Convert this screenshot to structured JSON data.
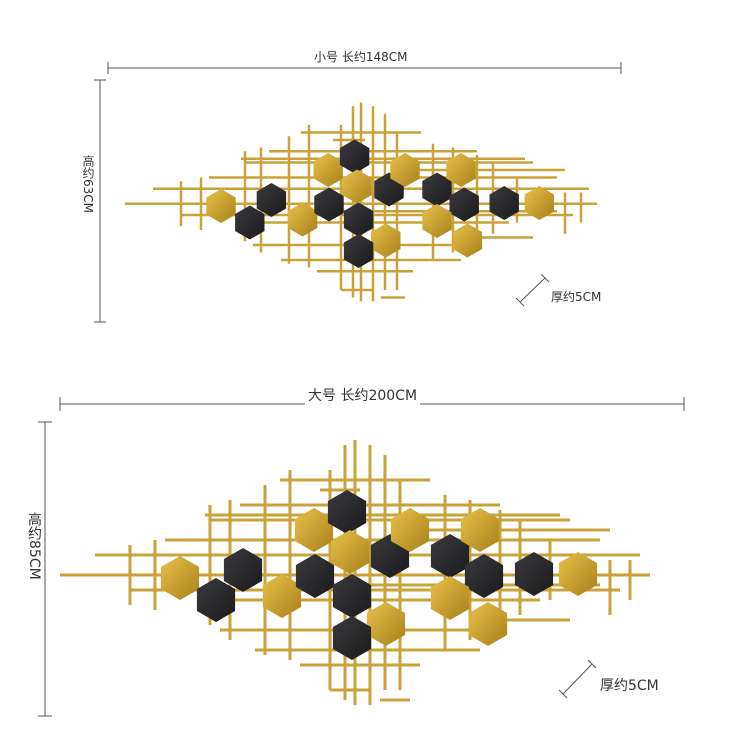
{
  "small": {
    "width_label": "小号 长约148CM",
    "height_label": "高约63CM",
    "depth_label": "厚约5CM"
  },
  "large": {
    "width_label": "大号 长约200CM",
    "height_label": "高约85CM",
    "depth_label": "厚约5CM"
  },
  "colors": {
    "gold": "#d4a62a",
    "gold_light": "#e8c14a",
    "gold_dark": "#a8801a",
    "black": "#1b1b1d",
    "black_hi": "#3a3a3e",
    "rod": "#c9a23a",
    "dimension_line": "#555555"
  }
}
